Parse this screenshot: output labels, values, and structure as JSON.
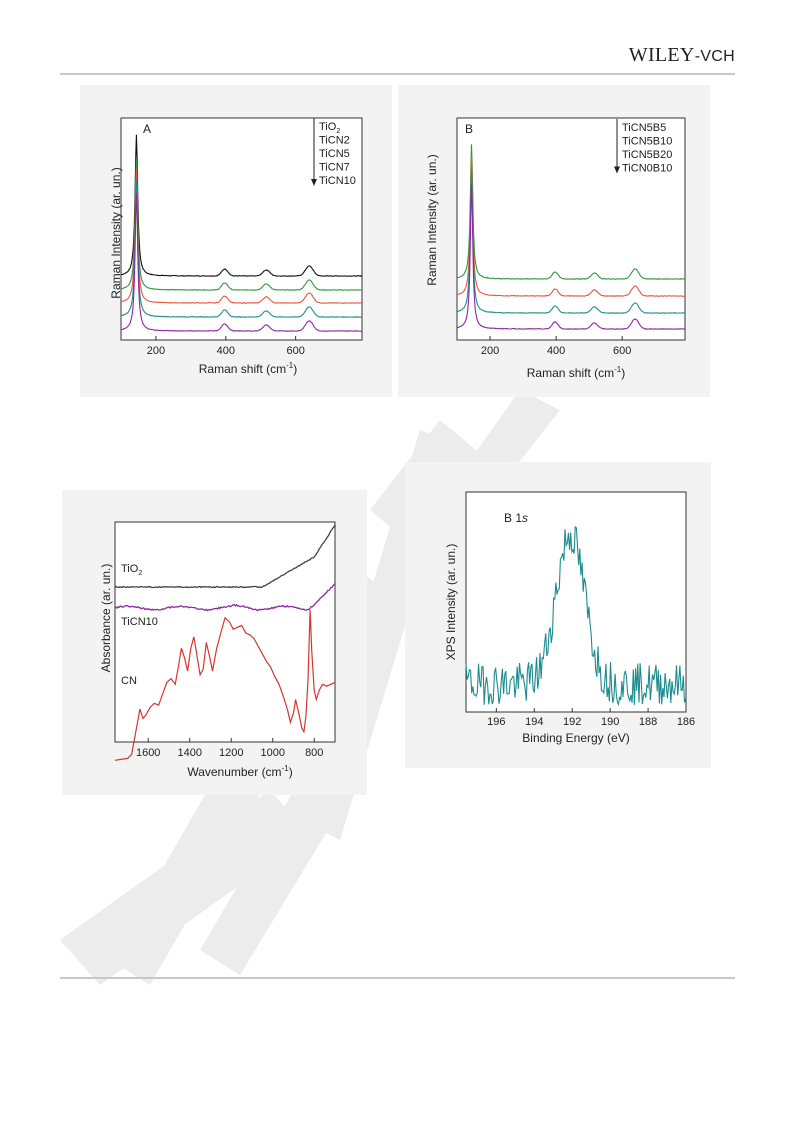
{
  "header": {
    "publisher": "WILEY",
    "publisher_suffix": "-VCH"
  },
  "chart_data": [
    {
      "type": "line",
      "panel_label": "A",
      "xlabel": "Raman shift  (cm",
      "xlabel_sup": "-1",
      "xlabel_end": ")",
      "ylabel": "Raman Intensity  (ar. un.)",
      "xlim": [
        100,
        790
      ],
      "xticks": [
        200,
        400,
        600
      ],
      "legend_position": "top-right",
      "legend_arrow": "down",
      "series": [
        {
          "name": "TiO",
          "name_sub": "2",
          "color": "#111111",
          "peak_scale": 1.0
        },
        {
          "name": "TiCN2",
          "color": "#2e9a3b",
          "peak_scale": 0.85
        },
        {
          "name": "TiCN5",
          "color": "#e8583f",
          "peak_scale": 0.8
        },
        {
          "name": "TiCN7",
          "color": "#1f8f8a",
          "peak_scale": 0.75
        },
        {
          "name": "TiCN10",
          "color": "#8b2a9e",
          "peak_scale": 0.7
        }
      ],
      "peaks_cm-1": [
        144,
        397,
        516,
        639
      ]
    },
    {
      "type": "line",
      "panel_label": "B",
      "xlabel": "Raman shift  (cm",
      "xlabel_sup": "-1",
      "xlabel_end": ")",
      "ylabel": "Raman Intensity  (ar. un.)",
      "xlim": [
        100,
        790
      ],
      "xticks": [
        200,
        400,
        600
      ],
      "legend_position": "top-right",
      "legend_arrow": "down",
      "series": [
        {
          "name": "TiCN5B5",
          "color": "#2e9a3b",
          "peak_scale": 0.95
        },
        {
          "name": "TiCN5B10",
          "color": "#e8583f",
          "peak_scale": 0.88
        },
        {
          "name": "TiCN5B20",
          "color": "#1f8f8a",
          "peak_scale": 0.82
        },
        {
          "name": "TiCN0B10",
          "color": "#8b2a9e",
          "peak_scale": 0.75
        }
      ],
      "peaks_cm-1": [
        144,
        397,
        516,
        639
      ]
    },
    {
      "type": "line",
      "xlabel": "Wavenumber  (cm",
      "xlabel_sup": "-1",
      "xlabel_end": ")",
      "ylabel": "Absorbance  (ar. un.)",
      "xlim": [
        1760,
        700
      ],
      "xticks": [
        1600,
        1400,
        1200,
        1000,
        800
      ],
      "series": [
        {
          "name": "TiO",
          "name_sub": "2",
          "color": "#444444"
        },
        {
          "name": "TiCN10",
          "color": "#8b2a9e"
        },
        {
          "name": "CN",
          "color": "#d8342f",
          "points": [
            [
              1760,
              -7
            ],
            [
              1700,
              -6
            ],
            [
              1680,
              -4
            ],
            [
              1660,
              8
            ],
            [
              1640,
              20
            ],
            [
              1625,
              15
            ],
            [
              1610,
              17
            ],
            [
              1590,
              21
            ],
            [
              1570,
              23
            ],
            [
              1550,
              22
            ],
            [
              1530,
              28
            ],
            [
              1510,
              34
            ],
            [
              1490,
              36
            ],
            [
              1470,
              33
            ],
            [
              1455,
              42
            ],
            [
              1440,
              52
            ],
            [
              1425,
              47
            ],
            [
              1410,
              40
            ],
            [
              1395,
              52
            ],
            [
              1380,
              58
            ],
            [
              1365,
              48
            ],
            [
              1350,
              38
            ],
            [
              1335,
              41
            ],
            [
              1320,
              55
            ],
            [
              1305,
              48
            ],
            [
              1290,
              40
            ],
            [
              1270,
              52
            ],
            [
              1250,
              60
            ],
            [
              1230,
              68
            ],
            [
              1210,
              66
            ],
            [
              1190,
              62
            ],
            [
              1170,
              63
            ],
            [
              1150,
              64
            ],
            [
              1130,
              60
            ],
            [
              1110,
              59
            ],
            [
              1090,
              57
            ],
            [
              1070,
              53
            ],
            [
              1050,
              49
            ],
            [
              1030,
              45
            ],
            [
              1010,
              42
            ],
            [
              990,
              37
            ],
            [
              970,
              33
            ],
            [
              950,
              27
            ],
            [
              930,
              20
            ],
            [
              915,
              13
            ],
            [
              900,
              18
            ],
            [
              890,
              25
            ],
            [
              875,
              18
            ],
            [
              860,
              10
            ],
            [
              850,
              8
            ],
            [
              840,
              16
            ],
            [
              830,
              35
            ],
            [
              820,
              72
            ],
            [
              812,
              50
            ],
            [
              800,
              30
            ],
            [
              790,
              25
            ],
            [
              775,
              30
            ],
            [
              760,
              33
            ],
            [
              740,
              32
            ],
            [
              720,
              33
            ],
            [
              700,
              34
            ]
          ]
        }
      ]
    },
    {
      "type": "line",
      "annotation": "B 1",
      "annotation_italic": "s",
      "xlabel": "Binding Energy  (eV)",
      "ylabel": "XPS Intensity  (ar. un.)",
      "xlim": [
        197.6,
        186.0
      ],
      "xticks": [
        196,
        194,
        192,
        190,
        188,
        186
      ],
      "series": [
        {
          "name": "B 1s",
          "color": "#1e8c8e"
        }
      ]
    }
  ]
}
